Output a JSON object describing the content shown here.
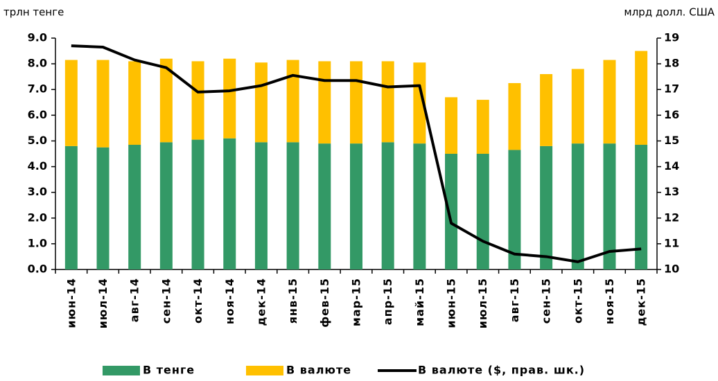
{
  "chart_data": {
    "type": "bar_line",
    "y_label": "трлн тенге",
    "y2_label": "млрд долл. США",
    "categories": [
      "июн-14",
      "июл-14",
      "авг-14",
      "сен-14",
      "окт-14",
      "ноя-14",
      "дек-14",
      "янв-15",
      "фев-15",
      "мар-15",
      "апр-15",
      "май-15",
      "июн-15",
      "июл-15",
      "авг-15",
      "сен-15",
      "окт-15",
      "ноя-15",
      "дек-15"
    ],
    "series": [
      {
        "name": "В тенге",
        "color": "#339966",
        "type": "bar",
        "values": [
          4.8,
          4.75,
          4.85,
          4.95,
          5.05,
          5.1,
          4.95,
          4.95,
          4.9,
          4.9,
          4.95,
          4.9,
          4.5,
          4.5,
          4.65,
          4.8,
          4.9,
          4.9,
          4.85
        ]
      },
      {
        "name": "В валюте",
        "color": "#ffc000",
        "type": "bar",
        "values": [
          3.35,
          3.4,
          3.25,
          3.25,
          3.05,
          3.1,
          3.1,
          3.2,
          3.2,
          3.2,
          3.15,
          3.15,
          2.2,
          2.1,
          2.6,
          2.8,
          2.9,
          3.25,
          3.65
        ]
      },
      {
        "name": "В валюте ($, прав. шк.)",
        "color": "#000000",
        "type": "line",
        "axis": "y2",
        "values": [
          18.7,
          18.65,
          18.15,
          17.85,
          16.9,
          16.95,
          17.15,
          17.55,
          17.35,
          17.35,
          17.1,
          17.15,
          11.8,
          11.1,
          10.6,
          10.5,
          10.3,
          10.7,
          10.8
        ]
      }
    ],
    "ylim": [
      0,
      9
    ],
    "yticks": [
      {
        "value": 0,
        "label": "0.0"
      },
      {
        "value": 1,
        "label": "1.0"
      },
      {
        "value": 2,
        "label": "2.0"
      },
      {
        "value": 3,
        "label": "3.0"
      },
      {
        "value": 4,
        "label": "4.0"
      },
      {
        "value": 5,
        "label": "5.0"
      },
      {
        "value": 6,
        "label": "6.0"
      },
      {
        "value": 7,
        "label": "7.0"
      },
      {
        "value": 8,
        "label": "8.0"
      },
      {
        "value": 9,
        "label": "9.0"
      }
    ],
    "y2lim": [
      10,
      19
    ],
    "y2ticks": [
      10,
      11,
      12,
      13,
      14,
      15,
      16,
      17,
      18,
      19
    ],
    "grid": false,
    "legend": "bottom"
  }
}
